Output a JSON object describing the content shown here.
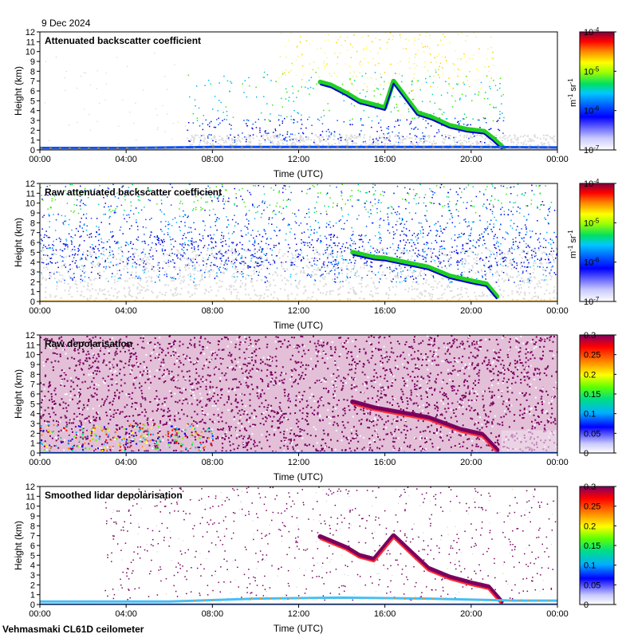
{
  "header": {
    "date": "9 Dec 2024"
  },
  "footer": {
    "instrument": "Vehmasmaki CL61D ceilometer"
  },
  "colors": {
    "background_fill": "#dcdcdc",
    "depol_dominant": "#7a0060",
    "frame": "#000000"
  },
  "chart_data": [
    {
      "type": "heatmap",
      "title": "Attenuated backscatter coefficient",
      "xlabel": "Time (UTC)",
      "ylabel": "Height (km)",
      "x_ticks": [
        "00:00",
        "04:00",
        "08:00",
        "12:00",
        "16:00",
        "20:00",
        "00:00"
      ],
      "xlim_hours": [
        0,
        24
      ],
      "y_ticks": [
        0,
        1,
        2,
        3,
        4,
        5,
        6,
        7,
        8,
        9,
        10,
        11,
        12
      ],
      "ylim_km": [
        0,
        12
      ],
      "colorbar": {
        "scale": "log",
        "ticks": [
          "10-4",
          "10-5",
          "10-6",
          "10-7"
        ],
        "unit": "m-1 sr-1"
      },
      "features": [
        {
          "name": "cloud",
          "points_hours_km": [
            [
              13.0,
              6.9
            ],
            [
              13.5,
              6.6
            ],
            [
              14.2,
              5.8
            ],
            [
              14.8,
              5.0
            ],
            [
              15.5,
              4.6
            ],
            [
              16.0,
              4.3
            ],
            [
              16.4,
              7.0
            ],
            [
              17.5,
              3.8
            ],
            [
              18.2,
              3.3
            ],
            [
              19.0,
              2.5
            ],
            [
              19.8,
              2.1
            ],
            [
              20.6,
              1.9
            ],
            [
              21.0,
              1.2
            ],
            [
              21.5,
              0.2
            ]
          ]
        },
        {
          "name": "boundary-layer",
          "points_hours_km": [
            [
              0,
              0.2
            ],
            [
              4,
              0.2
            ],
            [
              8,
              0.3
            ],
            [
              12,
              0.3
            ],
            [
              16,
              0.3
            ],
            [
              20,
              0.3
            ],
            [
              24,
              0.25
            ]
          ]
        }
      ]
    },
    {
      "type": "heatmap",
      "title": "Raw attenuated backscatter coefficient",
      "xlabel": "Time (UTC)",
      "ylabel": "Height (km)",
      "x_ticks": [
        "00:00",
        "04:00",
        "08:00",
        "12:00",
        "16:00",
        "20:00",
        "00:00"
      ],
      "xlim_hours": [
        0,
        24
      ],
      "y_ticks": [
        0,
        1,
        2,
        3,
        4,
        5,
        6,
        7,
        8,
        9,
        10,
        11,
        12
      ],
      "ylim_km": [
        0,
        12
      ],
      "colorbar": {
        "scale": "log",
        "ticks": [
          "10-4",
          "10-5",
          "10-6",
          "10-7"
        ],
        "unit": "m-1 sr-1"
      },
      "features": [
        {
          "name": "cloud",
          "points_hours_km": [
            [
              14.5,
              5.0
            ],
            [
              15.5,
              4.5
            ],
            [
              16.0,
              4.4
            ],
            [
              18.0,
              3.5
            ],
            [
              19.0,
              2.6
            ],
            [
              20.0,
              2.1
            ],
            [
              20.7,
              1.8
            ],
            [
              21.2,
              0.5
            ]
          ]
        }
      ]
    },
    {
      "type": "heatmap",
      "title": "Raw depolarisation",
      "xlabel": "Time (UTC)",
      "ylabel": "Height (km)",
      "x_ticks": [
        "00:00",
        "04:00",
        "08:00",
        "12:00",
        "16:00",
        "20:00",
        "00:00"
      ],
      "xlim_hours": [
        0,
        24
      ],
      "y_ticks": [
        0,
        1,
        2,
        3,
        4,
        5,
        6,
        7,
        8,
        9,
        10,
        11,
        12
      ],
      "ylim_km": [
        0,
        12
      ],
      "colorbar": {
        "scale": "linear",
        "ticks": [
          "0.3",
          "0.25",
          "0.2",
          "0.15",
          "0.1",
          "0.05",
          "0"
        ]
      },
      "features": [
        {
          "name": "cloud",
          "points_hours_km": [
            [
              14.5,
              5.2
            ],
            [
              15.5,
              4.6
            ],
            [
              18.0,
              3.6
            ],
            [
              19.5,
              2.4
            ],
            [
              20.5,
              1.9
            ],
            [
              21.2,
              0.3
            ]
          ]
        }
      ]
    },
    {
      "type": "heatmap",
      "title": "Smoothed lidar depolarisation",
      "xlabel": "Time (UTC)",
      "ylabel": "Height (km)",
      "x_ticks": [
        "00:00",
        "04:00",
        "08:00",
        "12:00",
        "16:00",
        "20:00",
        "00:00"
      ],
      "xlim_hours": [
        0,
        24
      ],
      "y_ticks": [
        0,
        1,
        2,
        3,
        4,
        5,
        6,
        7,
        8,
        9,
        10,
        11,
        12
      ],
      "ylim_km": [
        0,
        12
      ],
      "colorbar": {
        "scale": "linear",
        "ticks": [
          "0.3",
          "0.25",
          "0.2",
          "0.15",
          "0.1",
          "0.05",
          "0"
        ]
      },
      "features": [
        {
          "name": "cloud",
          "points_hours_km": [
            [
              13.0,
              6.9
            ],
            [
              14.2,
              5.8
            ],
            [
              14.8,
              5.0
            ],
            [
              15.5,
              4.6
            ],
            [
              16.4,
              7.0
            ],
            [
              18.0,
              3.7
            ],
            [
              19.0,
              2.8
            ],
            [
              20.0,
              2.2
            ],
            [
              20.8,
              1.8
            ],
            [
              21.4,
              0.3
            ]
          ]
        },
        {
          "name": "boundary-layer",
          "points_hours_km": [
            [
              0,
              0.3
            ],
            [
              6,
              0.3
            ],
            [
              10,
              0.6
            ],
            [
              14,
              0.7
            ],
            [
              18,
              0.6
            ],
            [
              22,
              0.4
            ],
            [
              24,
              0.4
            ]
          ]
        }
      ]
    }
  ]
}
